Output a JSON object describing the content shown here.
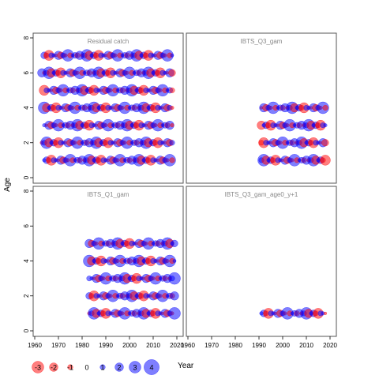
{
  "chart_data": {
    "type": "scatter",
    "layout": "2x2 panels, bubble plot",
    "ylabel": "Age",
    "xlabel": "Year",
    "xlim": [
      1960,
      2022
    ],
    "ylim": [
      0,
      8
    ],
    "x_ticks": [
      1960,
      1970,
      1980,
      1990,
      2000,
      2010,
      2020
    ],
    "y_ticks": [
      0,
      2,
      4,
      6,
      8
    ],
    "colors": {
      "positive": "#0000ff",
      "negative": "#ff0000",
      "frame": "#555555",
      "title": "#888888"
    },
    "panels": [
      {
        "title": "Residual catch",
        "rows": [
          {
            "age": 1,
            "first_year": 1964,
            "last_year": 2018,
            "start": 6
          },
          {
            "age": 2,
            "first_year": 1963,
            "last_year": 2018,
            "start": 2
          },
          {
            "age": 3,
            "first_year": 1964,
            "last_year": 2018,
            "start": 11
          },
          {
            "age": 4,
            "first_year": 1964,
            "last_year": 2018,
            "start": 4
          },
          {
            "age": 5,
            "first_year": 1964,
            "last_year": 2018,
            "start": 9
          },
          {
            "age": 6,
            "first_year": 1963,
            "last_year": 2018,
            "start": 1
          },
          {
            "age": 7,
            "first_year": 1964,
            "last_year": 2018,
            "start": 7
          }
        ]
      },
      {
        "title": "IBTS_Q3_gam",
        "rows": [
          {
            "age": 1,
            "first_year": 1991,
            "last_year": 2018,
            "start": 3
          },
          {
            "age": 2,
            "first_year": 1991,
            "last_year": 2018,
            "start": 8
          },
          {
            "age": 3,
            "first_year": 1991,
            "last_year": 2018,
            "start": 5
          },
          {
            "age": 4,
            "first_year": 1991,
            "last_year": 2018,
            "start": 12
          }
        ]
      },
      {
        "title": "IBTS_Q1_gam",
        "rows": [
          {
            "age": 1,
            "first_year": 1983,
            "last_year": 2019,
            "start": 2
          },
          {
            "age": 2,
            "first_year": 1983,
            "last_year": 2019,
            "start": 7
          },
          {
            "age": 3,
            "first_year": 1983,
            "last_year": 2019,
            "start": 10
          },
          {
            "age": 4,
            "first_year": 1983,
            "last_year": 2019,
            "start": 4
          },
          {
            "age": 5,
            "first_year": 1983,
            "last_year": 2019,
            "start": 13
          }
        ]
      },
      {
        "title": "IBTS_Q3_gam_age0_y+1",
        "rows": [
          {
            "age": 1,
            "first_year": 1991,
            "last_year": 2018,
            "start": 6
          }
        ]
      }
    ],
    "residual_pattern": [
      -1,
      2,
      -0.5,
      1,
      3,
      -2,
      0.5,
      1.5,
      -1,
      -2.5,
      1,
      0.5,
      -0.3,
      2,
      -1.5,
      1,
      -0.5,
      3,
      -1,
      0.4,
      1.2
    ],
    "legend": {
      "values": [
        -3,
        -2,
        -1,
        0,
        1,
        2,
        3,
        4
      ],
      "labels": [
        "-3",
        "-2",
        "-1",
        "0",
        "1",
        "2",
        "3",
        "4"
      ]
    }
  }
}
